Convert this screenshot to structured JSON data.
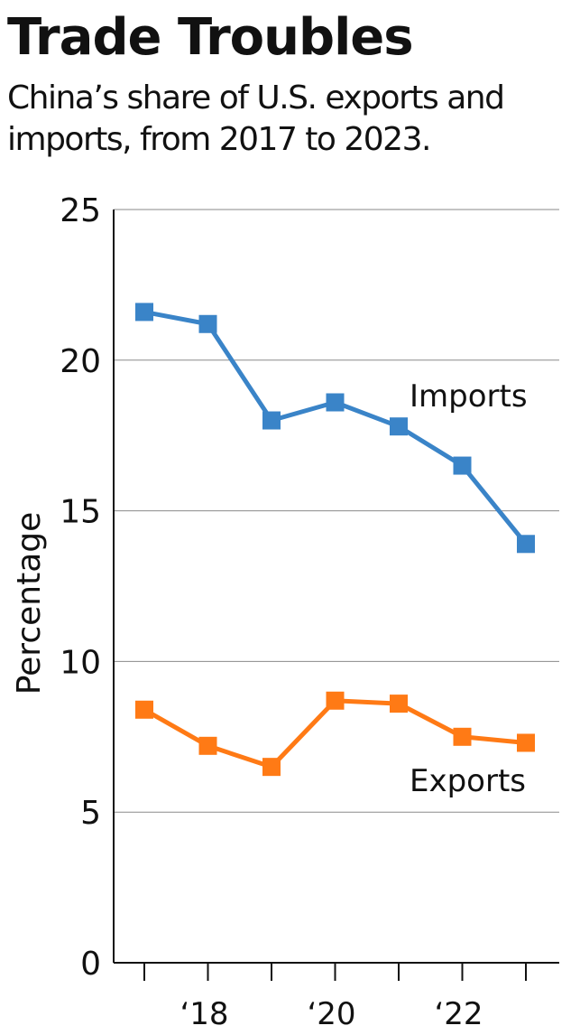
{
  "chart_data": {
    "type": "line",
    "title": "Trade Troubles",
    "subtitle": "China’s share of U.S. exports and imports, from 2017 to 2023.",
    "ylabel": "Percentage",
    "xlabel": "",
    "ylim": [
      0,
      25
    ],
    "yticks": [
      "0",
      "5",
      "10",
      "15",
      "20",
      "25"
    ],
    "x": [
      2017,
      2018,
      2019,
      2020,
      2021,
      2022,
      2023
    ],
    "xtick_labels": [
      {
        "year": 2018,
        "label": "‘18"
      },
      {
        "year": 2020,
        "label": "‘20"
      },
      {
        "year": 2022,
        "label": "‘22"
      }
    ],
    "grid": true,
    "legend": "direct-labels",
    "series": [
      {
        "name": "Imports",
        "color": "#3a84c8",
        "values": [
          21.6,
          21.2,
          18.0,
          18.6,
          17.8,
          16.5,
          13.9
        ]
      },
      {
        "name": "Exports",
        "color": "#ff7a15",
        "values": [
          8.4,
          7.2,
          6.5,
          8.7,
          8.6,
          7.5,
          7.3
        ]
      }
    ]
  }
}
